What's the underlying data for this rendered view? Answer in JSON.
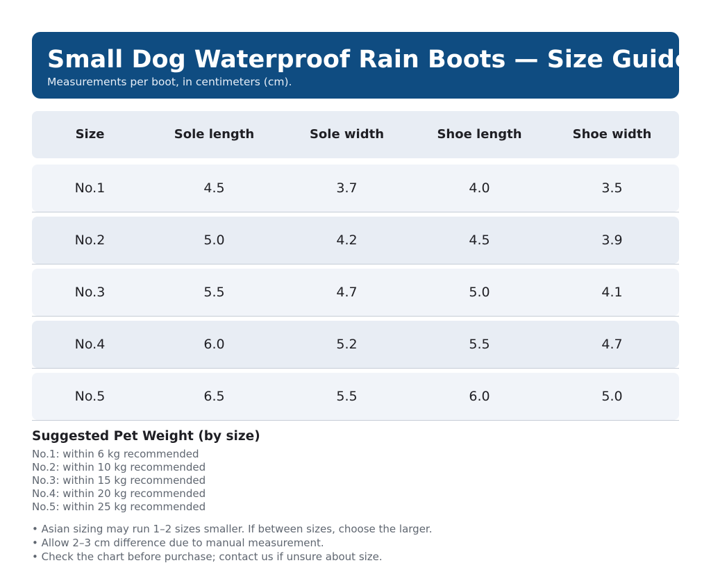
{
  "header": {
    "title": "Small Dog Waterproof Rain Boots — Size Guide",
    "subtitle": "Measurements per boot, in centimeters (cm)."
  },
  "table": {
    "columns": [
      "Size",
      "Sole length",
      "Sole width",
      "Shoe length",
      "Shoe width"
    ],
    "rows": [
      [
        "No.1",
        "4.5",
        "3.7",
        "4.0",
        "3.5"
      ],
      [
        "No.2",
        "5.0",
        "4.2",
        "4.5",
        "3.9"
      ],
      [
        "No.3",
        "5.5",
        "4.7",
        "5.0",
        "4.1"
      ],
      [
        "No.4",
        "6.0",
        "5.2",
        "5.5",
        "4.7"
      ],
      [
        "No.5",
        "6.5",
        "5.5",
        "6.0",
        "5.0"
      ]
    ]
  },
  "weights": {
    "heading": "Suggested Pet Weight (by size)",
    "lines": [
      "No.1: within 6 kg recommended",
      "No.2: within 10 kg recommended",
      "No.3: within 15 kg recommended",
      "No.4: within 20 kg recommended",
      "No.5: within 25 kg recommended"
    ]
  },
  "notes": [
    "• Asian sizing may run 1–2 sizes smaller. If between sizes, choose the larger.",
    "• Allow 2–3 cm difference due to manual measurement.",
    "• Check the chart before purchase; contact us if unsure about size."
  ],
  "colors": {
    "header_bg": "#0f4c81",
    "row_light": "#f1f4f9",
    "row_dark": "#e8edf4"
  }
}
